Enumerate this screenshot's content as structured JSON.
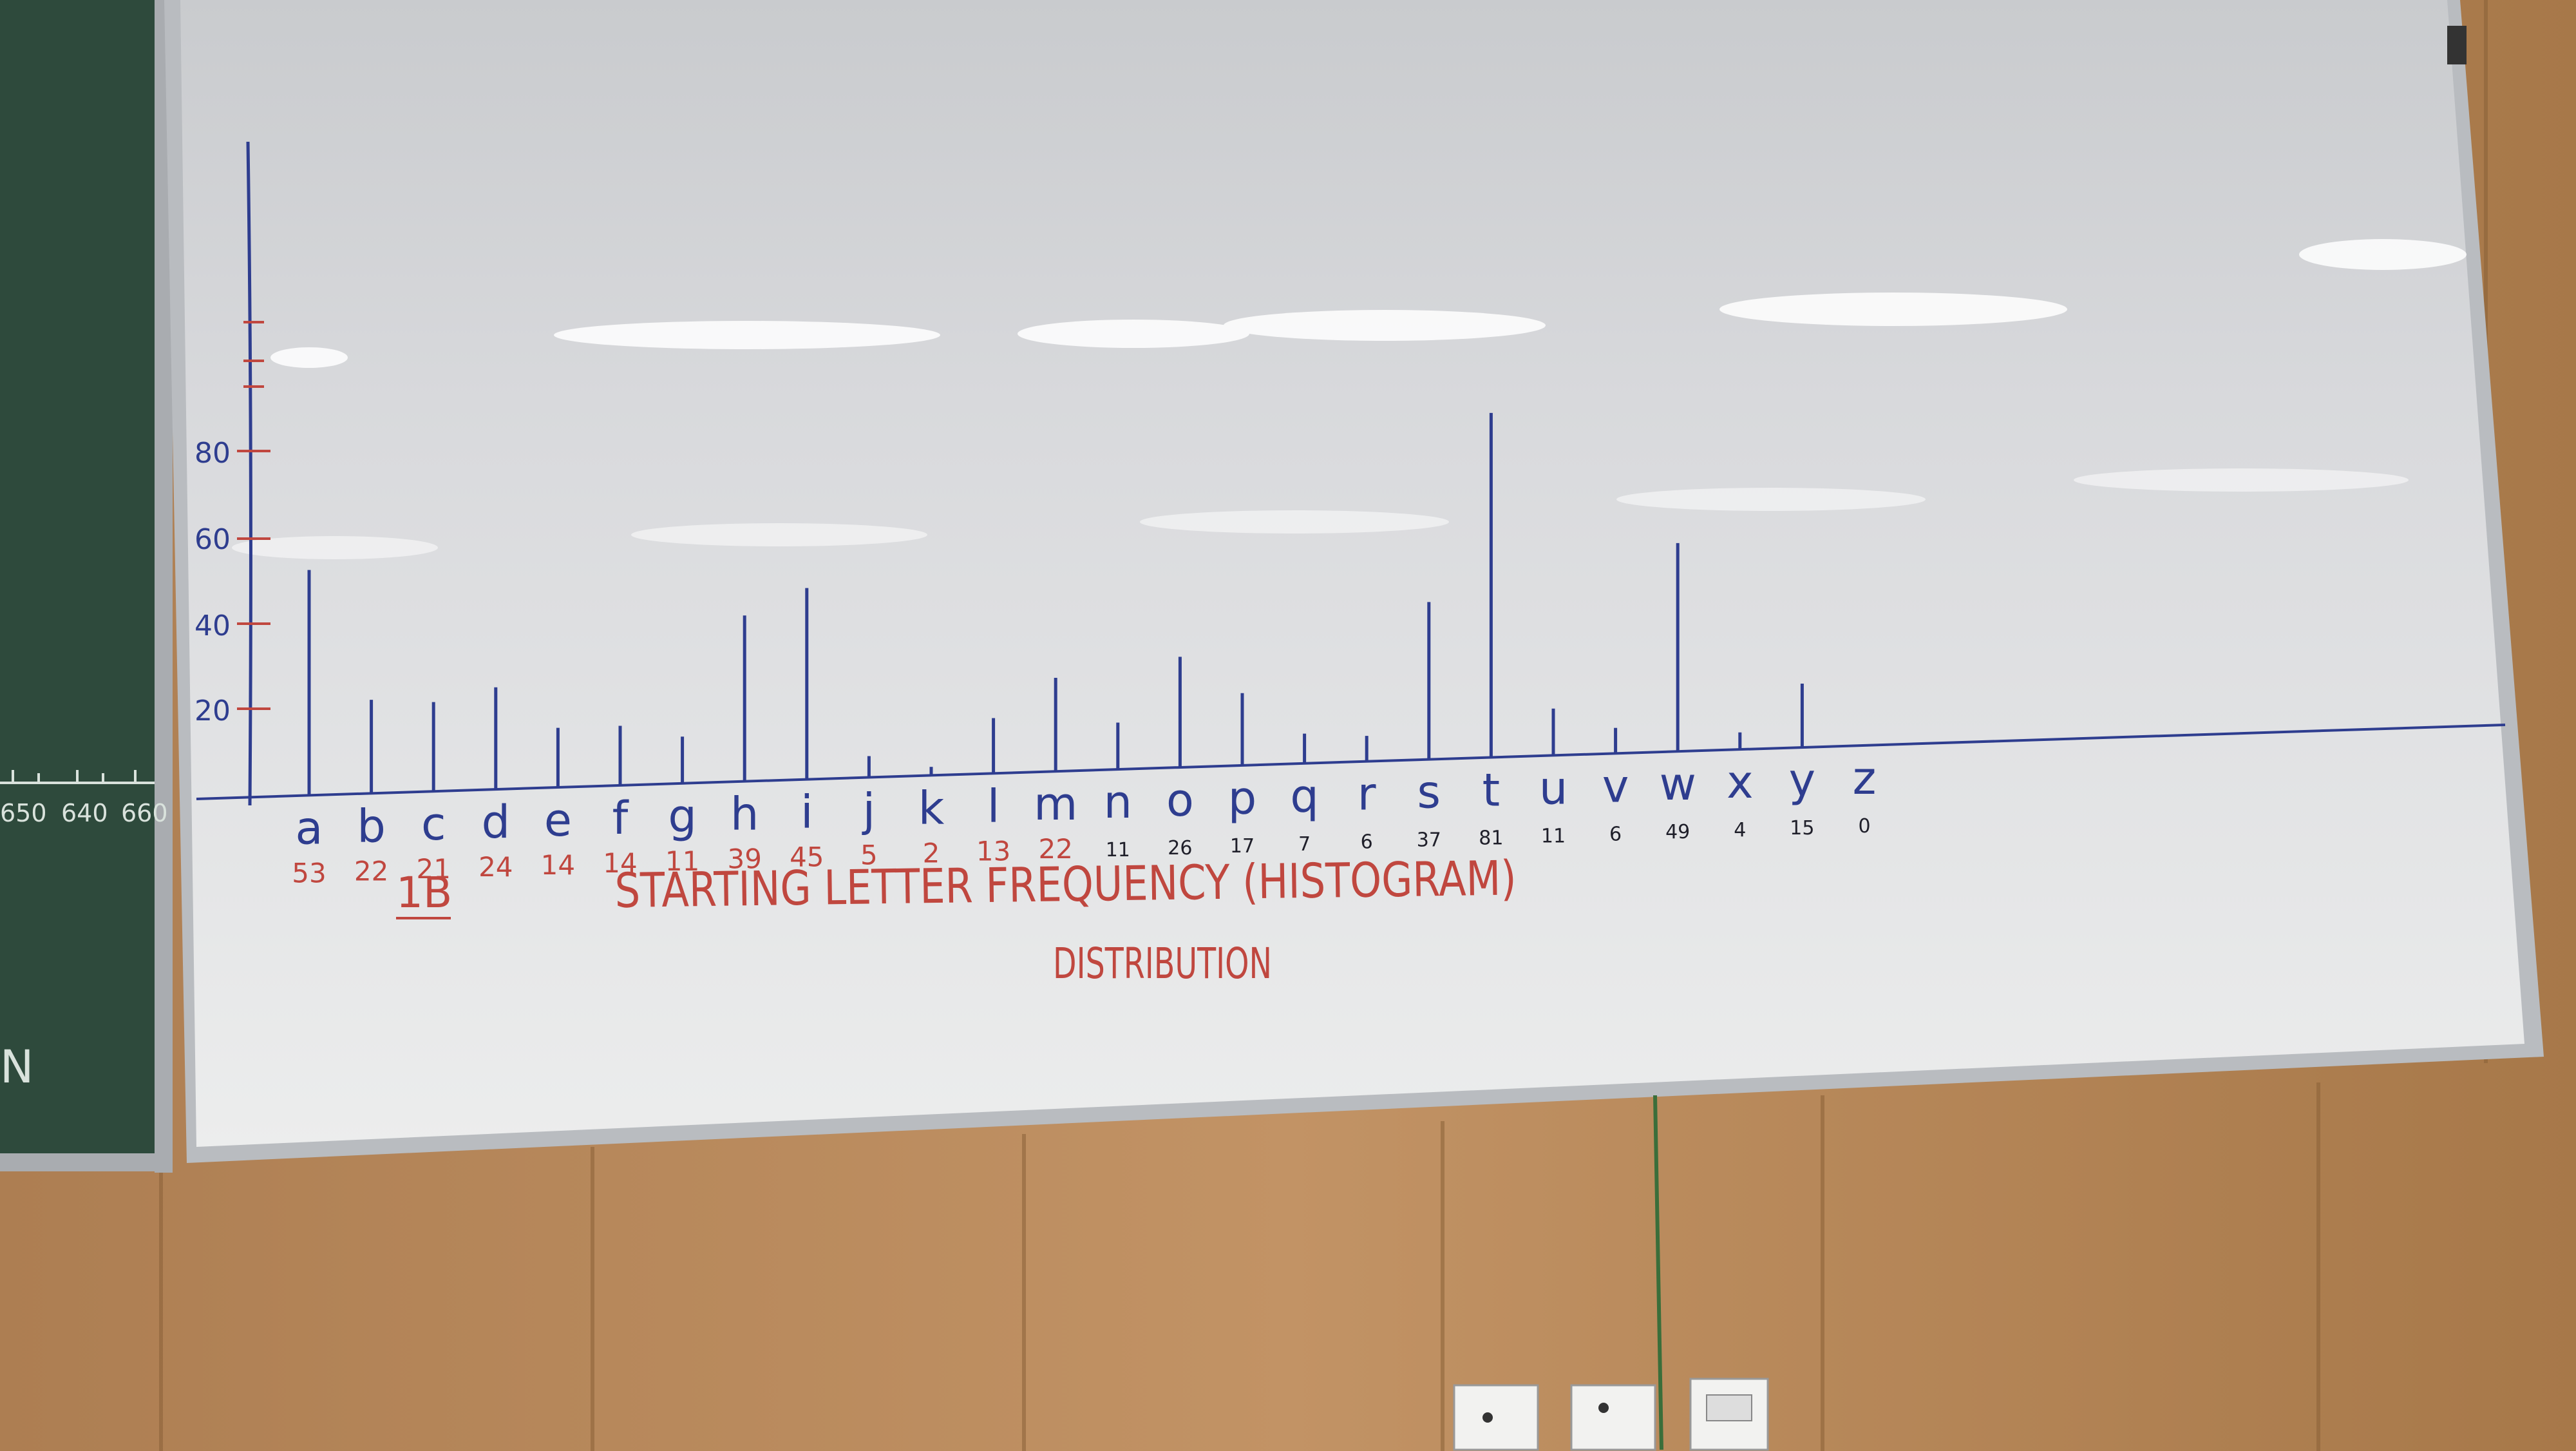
{
  "colors": {
    "board": "#e6e7e9",
    "frame": "#b9bcc0",
    "wood": "#b9895a",
    "chalkboard": "#2e4a3c",
    "blue_ink": "#2e3d8f",
    "red_ink": "#c0473f",
    "black_ink": "#1f1f2a"
  },
  "whiteboard": {
    "title": "STARTING LETTER FREQUENCY (HISTOGRAM)",
    "subtitle": "DISTRIBUTION",
    "section": "1B",
    "y_axis_ticks": [
      "20",
      "40",
      "60",
      "80"
    ],
    "bars": [
      {
        "letter": "a",
        "count": "53",
        "value": 53
      },
      {
        "letter": "b",
        "count": "22",
        "value": 22
      },
      {
        "letter": "c",
        "count": "21",
        "value": 21
      },
      {
        "letter": "d",
        "count": "24",
        "value": 24
      },
      {
        "letter": "e",
        "count": "14",
        "value": 14
      },
      {
        "letter": "f",
        "count": "14",
        "value": 14
      },
      {
        "letter": "g",
        "count": "11",
        "value": 11
      },
      {
        "letter": "h",
        "count": "39",
        "value": 39
      },
      {
        "letter": "i",
        "count": "45",
        "value": 45
      },
      {
        "letter": "j",
        "count": "5",
        "value": 5
      },
      {
        "letter": "k",
        "count": "2",
        "value": 2
      },
      {
        "letter": "l",
        "count": "13",
        "value": 13
      },
      {
        "letter": "m",
        "count": "22",
        "value": 22
      },
      {
        "letter": "n",
        "count": "11",
        "value": 11
      },
      {
        "letter": "o",
        "count": "26",
        "value": 26
      },
      {
        "letter": "p",
        "count": "17",
        "value": 17
      },
      {
        "letter": "q",
        "count": "7",
        "value": 7
      },
      {
        "letter": "r",
        "count": "6",
        "value": 6
      },
      {
        "letter": "s",
        "count": "37",
        "value": 37
      },
      {
        "letter": "t",
        "count": "81",
        "value": 81
      },
      {
        "letter": "u",
        "count": "11",
        "value": 11
      },
      {
        "letter": "v",
        "count": "6",
        "value": 6
      },
      {
        "letter": "w",
        "count": "49",
        "value": 49
      },
      {
        "letter": "x",
        "count": "4",
        "value": 4
      },
      {
        "letter": "y",
        "count": "15",
        "value": 15
      },
      {
        "letter": "z",
        "count": "0",
        "value": 0
      }
    ]
  },
  "chalkboard": {
    "ruler_labels": [
      "650",
      "640",
      "660"
    ],
    "edge_text": "N"
  },
  "power_sockets": {
    "count": 3
  }
}
